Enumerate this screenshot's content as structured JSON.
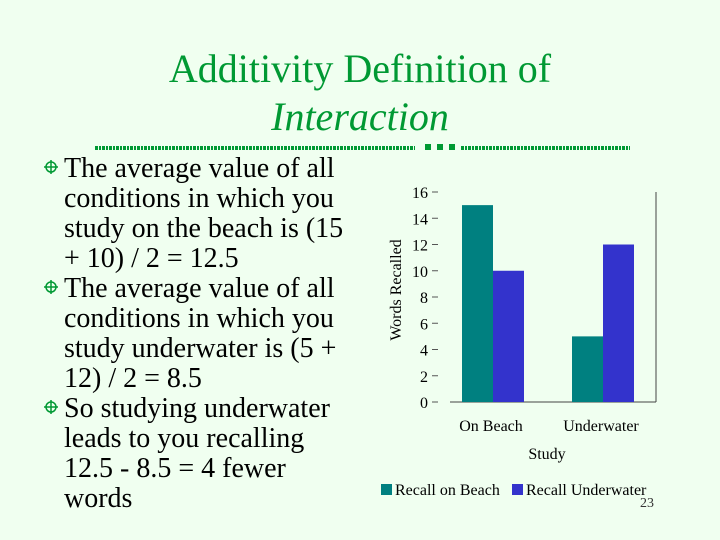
{
  "slide": {
    "title_line1": "Additivity Definition of",
    "title_line2": "Interaction",
    "slide_number": "23",
    "bullets": [
      "The average value of all conditions in which you study on the beach is (15 + 10) / 2 = 12.5",
      "The average value of all conditions in which you study underwater is (5 + 12) / 2 = 8.5",
      "So studying underwater leads to you recalling 12.5 - 8.5 = 4 fewer words"
    ]
  },
  "colors": {
    "title": "#009933",
    "recall_on_beach": "#008080",
    "recall_underwater": "#3333cc"
  },
  "chart_data": {
    "type": "bar",
    "title": "",
    "xlabel": "Study",
    "ylabel": "Words Recalled",
    "ylim": [
      0,
      16
    ],
    "yticks": [
      "0",
      "2",
      "4",
      "6",
      "8",
      "10",
      "12",
      "14",
      "16"
    ],
    "categories": [
      "On Beach",
      "Underwater"
    ],
    "series": [
      {
        "name": "Recall on Beach",
        "values": [
          15,
          5
        ]
      },
      {
        "name": "Recall Underwater",
        "values": [
          10,
          12
        ]
      }
    ],
    "legend": "bottom"
  }
}
